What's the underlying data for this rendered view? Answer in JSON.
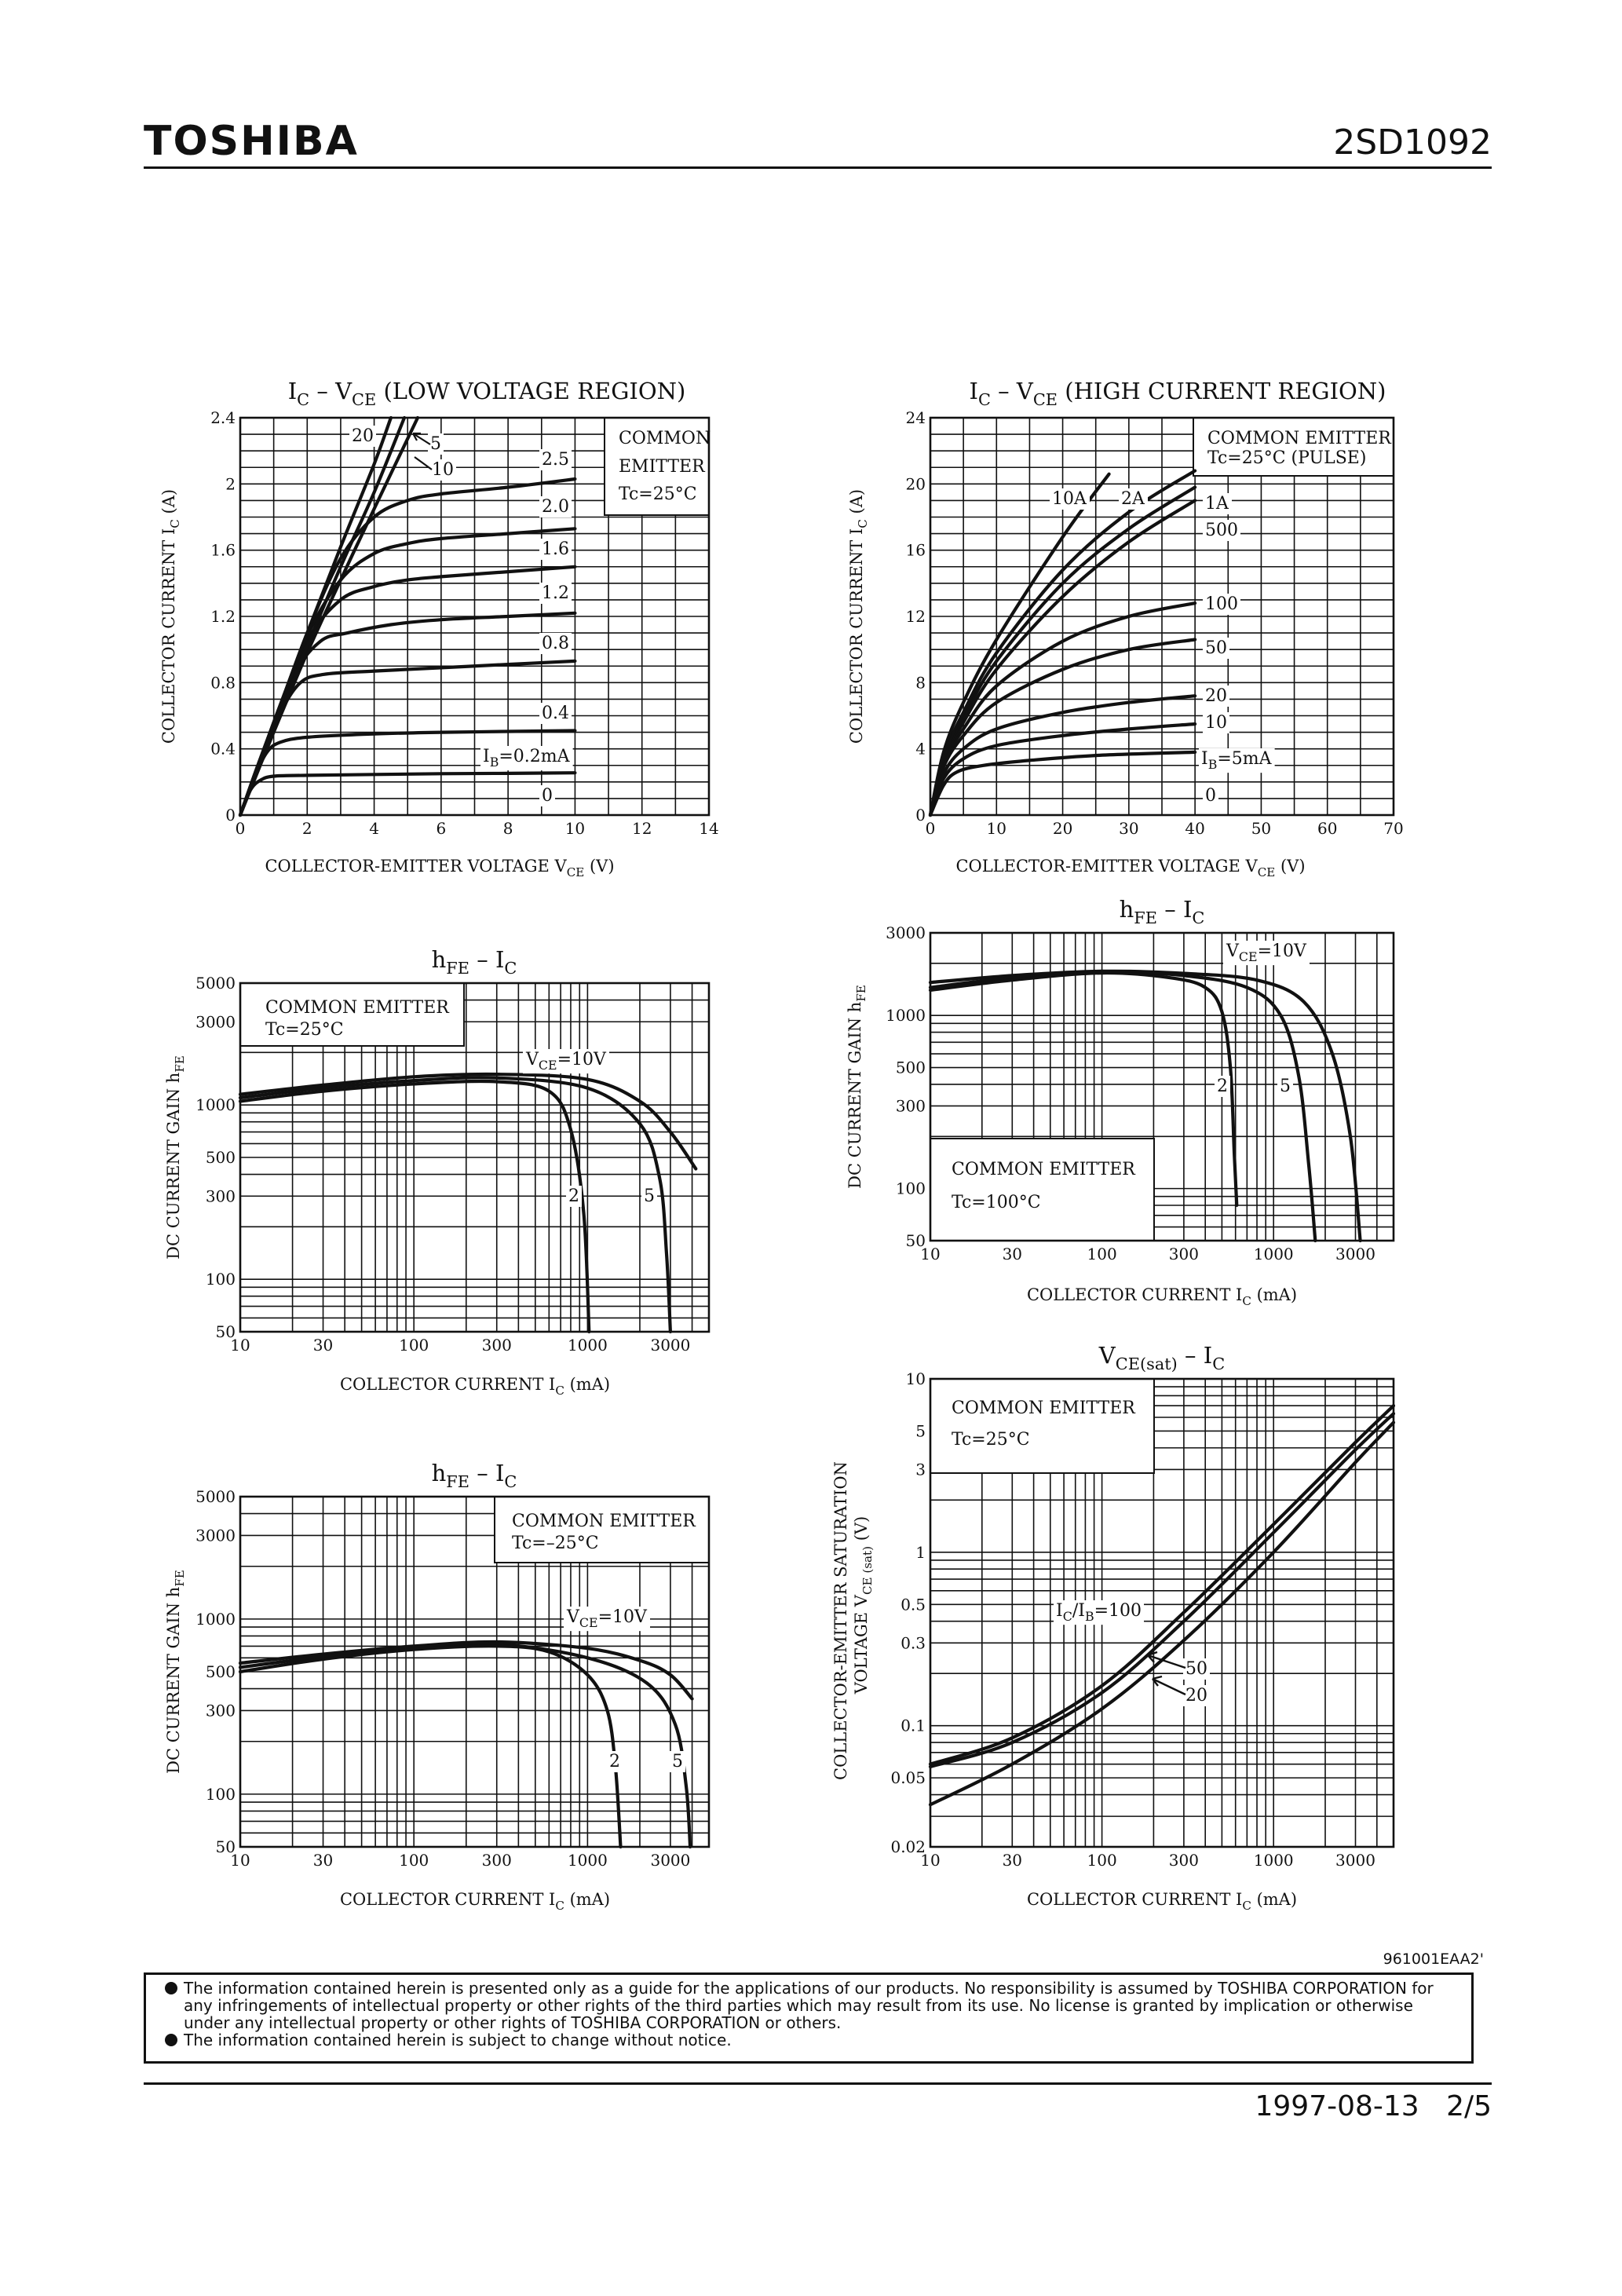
{
  "header": {
    "brand": "TOSHIBA",
    "part_number": "2SD1092"
  },
  "footer": {
    "doc_code": "961001EAA2'",
    "date": "1997-08-13",
    "page": "2/5"
  },
  "notice": {
    "lines": [
      "The information contained herein is presented only as a guide for the applications of our products. No responsibility is assumed by TOSHIBA CORPORATION for any infringements of intellectual property or other rights of the third parties which may result from its use. No license is granted by implication or otherwise under any intellectual property or other rights of TOSHIBA CORPORATION or others.",
      "The information contained herein is subject to change without notice."
    ]
  },
  "chart_data": [
    {
      "id": "c1",
      "type": "line",
      "scale": "linear",
      "title_text": "I_C – V_CE",
      "title_note": "(LOW VOLTAGE REGION)",
      "xlabel": "COLLECTOR-EMITTER VOLTAGE",
      "xsym": "V_CE",
      "xunit": "(V)",
      "ylabel": "COLLECTOR CURRENT",
      "ysym": "I_C",
      "yunit": "(A)",
      "xlim": [
        0,
        14
      ],
      "ylim": [
        0,
        2.4
      ],
      "xticks": [
        0,
        2,
        4,
        6,
        8,
        10,
        12,
        14
      ],
      "yticks": [
        0,
        0.4,
        0.8,
        1.2,
        1.6,
        2.0,
        2.4
      ],
      "condition": [
        "COMMON",
        "EMITTER",
        "Tc=25°C"
      ],
      "series": [
        {
          "name": "IB=0.2mA",
          "label": "I_B=0.2mA",
          "x": [
            0,
            0.3,
            0.6,
            1,
            2,
            4,
            6,
            8,
            10
          ],
          "y": [
            0,
            0.15,
            0.21,
            0.235,
            0.24,
            0.245,
            0.25,
            0.252,
            0.255
          ]
        },
        {
          "name": "IB=0.4mA",
          "label": "0.4",
          "x": [
            0,
            0.4,
            0.8,
            1.2,
            2,
            4,
            6,
            8,
            10
          ],
          "y": [
            0,
            0.22,
            0.38,
            0.44,
            0.47,
            0.49,
            0.5,
            0.505,
            0.51
          ]
        },
        {
          "name": "IB=0.8mA",
          "label": "0.8",
          "x": [
            0,
            0.6,
            1.2,
            1.8,
            2.5,
            4,
            6,
            8,
            10
          ],
          "y": [
            0,
            0.34,
            0.62,
            0.8,
            0.85,
            0.87,
            0.89,
            0.91,
            0.93
          ]
        },
        {
          "name": "IB=1.2mA",
          "label": "1.2",
          "x": [
            0,
            0.8,
            1.6,
            2.4,
            3.2,
            4.5,
            6,
            8,
            10
          ],
          "y": [
            0,
            0.45,
            0.85,
            1.05,
            1.1,
            1.15,
            1.18,
            1.2,
            1.22
          ]
        },
        {
          "name": "IB=1.6mA",
          "label": "1.6",
          "x": [
            0,
            1,
            2,
            3,
            4,
            5,
            6,
            8,
            10
          ],
          "y": [
            0,
            0.55,
            1.05,
            1.3,
            1.38,
            1.42,
            1.44,
            1.47,
            1.5
          ]
        },
        {
          "name": "IB=2.0mA",
          "label": "2.0",
          "x": [
            0,
            1,
            2,
            3,
            4,
            5,
            6,
            8,
            10
          ],
          "y": [
            0,
            0.55,
            1.08,
            1.42,
            1.58,
            1.64,
            1.67,
            1.7,
            1.73
          ]
        },
        {
          "name": "IB=2.5mA",
          "label": "2.5",
          "x": [
            0,
            1,
            2,
            3,
            4,
            5,
            6,
            8,
            10
          ],
          "y": [
            0,
            0.55,
            1.1,
            1.55,
            1.8,
            1.9,
            1.94,
            1.98,
            2.03
          ]
        },
        {
          "name": "IB=5mA",
          "label": "5",
          "x": [
            0,
            1,
            2,
            3,
            4,
            5.3
          ],
          "y": [
            0,
            0.5,
            0.98,
            1.42,
            1.85,
            2.4
          ]
        },
        {
          "name": "IB=10mA",
          "label": "10",
          "x": [
            0,
            1,
            2,
            3,
            4,
            4.9
          ],
          "y": [
            0,
            0.52,
            1.02,
            1.5,
            1.95,
            2.4
          ]
        },
        {
          "name": "IB=20mA",
          "label": "20",
          "x": [
            0,
            1,
            2,
            3,
            4,
            4.5
          ],
          "y": [
            0,
            0.56,
            1.1,
            1.62,
            2.12,
            2.4
          ]
        }
      ],
      "legend_labels": [
        "20",
        "5",
        "10",
        "2.5",
        "2.0",
        "1.6",
        "1.2",
        "0.8",
        "0.4",
        "I_B=0.2mA",
        "0"
      ]
    },
    {
      "id": "c2",
      "type": "line",
      "scale": "linear",
      "title_text": "I_C – V_CE",
      "title_note": "(HIGH CURRENT REGION)",
      "xlabel": "COLLECTOR-EMITTER VOLTAGE",
      "xsym": "V_CE",
      "xunit": "(V)",
      "ylabel": "COLLECTOR CURRENT",
      "ysym": "I_C",
      "yunit": "(A)",
      "xlim": [
        0,
        70
      ],
      "ylim": [
        0,
        24
      ],
      "xticks": [
        0,
        10,
        20,
        30,
        40,
        50,
        60,
        70
      ],
      "yticks": [
        0,
        4,
        8,
        12,
        16,
        20,
        24
      ],
      "condition": [
        "COMMON EMITTER",
        "Tc=25°C (PULSE)"
      ],
      "series": [
        {
          "name": "IB=5mA",
          "x": [
            0,
            2,
            4,
            8,
            15,
            25,
            40
          ],
          "y": [
            0,
            1.8,
            2.6,
            3.0,
            3.3,
            3.6,
            3.8
          ]
        },
        {
          "name": "IB=10mA",
          "x": [
            0,
            2,
            5,
            10,
            20,
            30,
            40
          ],
          "y": [
            0,
            2.2,
            3.4,
            4.2,
            4.8,
            5.2,
            5.5
          ]
        },
        {
          "name": "IB=20mA",
          "x": [
            0,
            2,
            5,
            10,
            20,
            30,
            40
          ],
          "y": [
            0,
            2.5,
            4.0,
            5.2,
            6.2,
            6.8,
            7.2
          ]
        },
        {
          "name": "IB=50mA",
          "x": [
            0,
            2,
            5,
            10,
            20,
            30,
            40
          ],
          "y": [
            0,
            2.9,
            4.8,
            6.8,
            8.8,
            10.0,
            10.6
          ]
        },
        {
          "name": "IB=100mA",
          "x": [
            0,
            2,
            5,
            10,
            20,
            30,
            40
          ],
          "y": [
            0,
            3.1,
            5.2,
            7.8,
            10.5,
            12.0,
            12.8
          ]
        },
        {
          "name": "IB=500mA",
          "x": [
            0,
            2,
            5,
            10,
            20,
            30,
            40
          ],
          "y": [
            0,
            3.3,
            5.6,
            8.8,
            13.2,
            16.5,
            19.0
          ]
        },
        {
          "name": "IB=1A",
          "x": [
            0,
            2,
            5,
            10,
            20,
            30,
            40
          ],
          "y": [
            0,
            3.4,
            5.9,
            9.3,
            14.0,
            17.3,
            19.8
          ]
        },
        {
          "name": "IB=2A",
          "x": [
            0,
            2,
            5,
            10,
            20,
            30,
            40
          ],
          "y": [
            0,
            3.5,
            6.2,
            9.8,
            14.8,
            18.3,
            20.8
          ]
        },
        {
          "name": "IB=10A",
          "x": [
            0,
            2,
            5,
            10,
            20,
            27
          ],
          "y": [
            0,
            3.8,
            6.8,
            10.6,
            16.8,
            20.6
          ]
        }
      ],
      "legend_labels": [
        "10A",
        "2A",
        "1A",
        "500",
        "100",
        "50",
        "20",
        "10",
        "I_B=5mA",
        "0"
      ]
    },
    {
      "id": "c3",
      "type": "line",
      "scale": "loglog",
      "title_text": "h_FE – I_C",
      "xlabel": "COLLECTOR CURRENT",
      "xsym": "I_C",
      "xunit": "(mA)",
      "ylabel": "DC CURRENT GAIN",
      "ysym": "h_FE",
      "xlim": [
        10,
        5000
      ],
      "ylim": [
        50,
        5000
      ],
      "xticks": [
        10,
        30,
        100,
        300,
        1000,
        3000
      ],
      "yticks": [
        50,
        100,
        300,
        500,
        1000,
        3000,
        5000
      ],
      "condition": [
        "COMMON EMITTER",
        "Tc=25°C"
      ],
      "series": [
        {
          "name": "VCE=10V",
          "x": [
            10,
            30,
            100,
            300,
            1000,
            2000,
            3000,
            4200
          ],
          "y": [
            1150,
            1300,
            1450,
            1500,
            1400,
            1050,
            700,
            430
          ]
        },
        {
          "name": "VCE=5V",
          "x": [
            10,
            30,
            100,
            300,
            1000,
            2000,
            2600,
            2850,
            3000
          ],
          "y": [
            1100,
            1250,
            1380,
            1430,
            1250,
            780,
            380,
            140,
            50
          ]
        },
        {
          "name": "VCE=2V",
          "x": [
            10,
            30,
            100,
            300,
            600,
            800,
            950,
            1020
          ],
          "y": [
            1050,
            1200,
            1320,
            1360,
            1200,
            720,
            240,
            50
          ]
        }
      ],
      "legend_labels": [
        "V_CE=10V",
        "2",
        "5"
      ]
    },
    {
      "id": "c4",
      "type": "line",
      "scale": "loglog",
      "title_text": "h_FE – I_C",
      "xlabel": "COLLECTOR CURRENT",
      "xsym": "I_C",
      "xunit": "(mA)",
      "ylabel": "DC CURRENT GAIN",
      "ysym": "h_FE",
      "xlim": [
        10,
        5000
      ],
      "ylim": [
        50,
        3000
      ],
      "xticks": [
        10,
        30,
        100,
        300,
        1000,
        3000
      ],
      "yticks": [
        50,
        100,
        300,
        500,
        1000,
        3000
      ],
      "condition": [
        "COMMON EMITTER",
        "Tc=100°C"
      ],
      "series": [
        {
          "name": "VCE=10V",
          "x": [
            10,
            30,
            100,
            300,
            800,
            1500,
            2200,
            2800,
            3200
          ],
          "y": [
            1550,
            1700,
            1800,
            1750,
            1600,
            1200,
            600,
            200,
            50
          ]
        },
        {
          "name": "VCE=5V",
          "x": [
            10,
            30,
            100,
            300,
            700,
            1100,
            1400,
            1600,
            1750
          ],
          "y": [
            1450,
            1650,
            1780,
            1700,
            1450,
            1000,
            450,
            140,
            50
          ]
        },
        {
          "name": "VCE=2V",
          "x": [
            10,
            30,
            100,
            250,
            400,
            500,
            560,
            590,
            610
          ],
          "y": [
            1400,
            1600,
            1760,
            1650,
            1450,
            1050,
            500,
            160,
            80
          ]
        }
      ],
      "legend_labels": [
        "V_CE=10V",
        "2",
        "5"
      ]
    },
    {
      "id": "c5",
      "type": "line",
      "scale": "loglog",
      "title_text": "h_FE – I_C",
      "xlabel": "COLLECTOR CURRENT",
      "xsym": "I_C",
      "xunit": "(mA)",
      "ylabel": "DC CURRENT GAIN",
      "ysym": "h_FE",
      "xlim": [
        10,
        5000
      ],
      "ylim": [
        50,
        5000
      ],
      "xticks": [
        10,
        30,
        100,
        300,
        1000,
        3000
      ],
      "yticks": [
        50,
        100,
        300,
        500,
        1000,
        3000,
        5000
      ],
      "condition": [
        "COMMON EMITTER",
        "Tc=–25°C"
      ],
      "series": [
        {
          "name": "VCE=10V",
          "x": [
            10,
            30,
            100,
            300,
            1000,
            2000,
            3000,
            4000
          ],
          "y": [
            560,
            630,
            700,
            740,
            680,
            580,
            480,
            350
          ]
        },
        {
          "name": "VCE=5V",
          "x": [
            10,
            30,
            100,
            300,
            1000,
            2200,
            3200,
            3700,
            3900
          ],
          "y": [
            530,
            610,
            690,
            720,
            600,
            430,
            250,
            110,
            50
          ]
        },
        {
          "name": "VCE=2V",
          "x": [
            10,
            30,
            100,
            300,
            600,
            1000,
            1300,
            1450,
            1550
          ],
          "y": [
            500,
            590,
            670,
            700,
            650,
            480,
            300,
            140,
            50
          ]
        }
      ],
      "legend_labels": [
        "V_CE=10V",
        "2",
        "5"
      ]
    },
    {
      "id": "c6",
      "type": "line",
      "scale": "loglog",
      "title_text": "V_CE(sat) – I_C",
      "xlabel": "COLLECTOR CURRENT",
      "xsym": "I_C",
      "xunit": "(mA)",
      "ylabel": "COLLECTOR-EMITTER SATURATION",
      "ylabel2": "VOLTAGE",
      "ysym": "V_CE (sat)",
      "yunit": "(V)",
      "xlim": [
        10,
        5000
      ],
      "ylim": [
        0.02,
        10
      ],
      "xticks": [
        10,
        30,
        100,
        300,
        1000,
        3000
      ],
      "yticks": [
        0.02,
        0.05,
        0.1,
        0.3,
        0.5,
        1,
        3,
        5,
        10
      ],
      "ytick_labels": [
        "0.02",
        "0.05",
        "0.1",
        "0.3",
        "0.5",
        "1",
        "3",
        "5",
        "10"
      ],
      "condition": [
        "COMMON EMITTER",
        "Tc=25°C"
      ],
      "series": [
        {
          "name": "IC/IB=100",
          "x": [
            10,
            30,
            100,
            300,
            1000,
            3000,
            5000
          ],
          "y": [
            0.06,
            0.085,
            0.17,
            0.45,
            1.45,
            4.3,
            7.0
          ]
        },
        {
          "name": "IC/IB=50",
          "x": [
            10,
            30,
            100,
            300,
            1000,
            3000,
            5000
          ],
          "y": [
            0.058,
            0.08,
            0.155,
            0.4,
            1.3,
            3.9,
            6.3
          ]
        },
        {
          "name": "IC/IB=20",
          "x": [
            10,
            30,
            100,
            300,
            1000,
            3000,
            5000
          ],
          "y": [
            0.035,
            0.06,
            0.125,
            0.31,
            1.0,
            3.3,
            5.6
          ]
        }
      ],
      "legend_labels": [
        "I_C/I_B=100",
        "50",
        "20"
      ]
    }
  ]
}
